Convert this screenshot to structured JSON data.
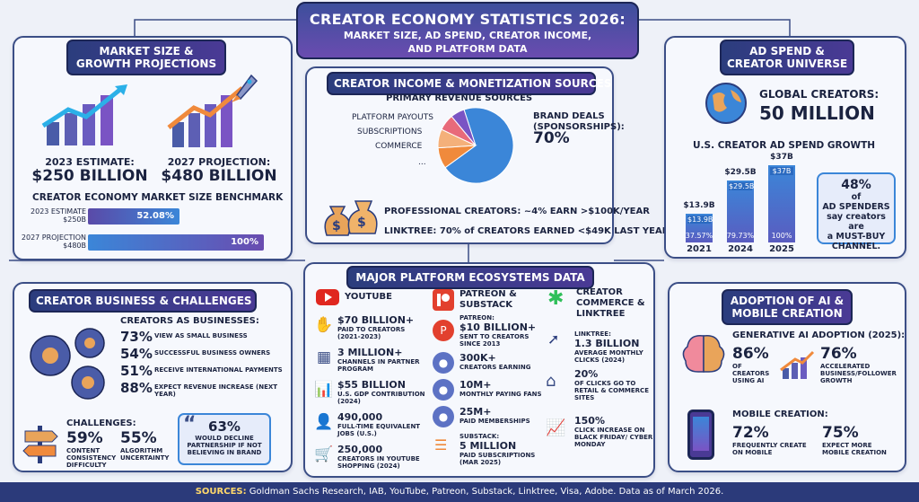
{
  "header": {
    "title": "CREATOR ECONOMY STATISTICS 2026:",
    "subtitle_1": "MARKET SIZE, AD SPEND, CREATOR INCOME,",
    "subtitle_2": "AND PLATFORM DATA"
  },
  "market": {
    "title_1": "MARKET SIZE &",
    "title_2": "GROWTH PROJECTIONS",
    "est_label": "2023 ESTIMATE:",
    "est_value": "$250 BILLION",
    "proj_label": "2027 PROJECTION:",
    "proj_value": "$480 BILLION",
    "bench_title": "CREATOR ECONOMY MARKET SIZE BENCHMARK",
    "bars": [
      {
        "label_1": "2023 ESTIMATE",
        "label_2": "$250B",
        "display": "52.08%",
        "value": 52.08
      },
      {
        "label_1": "2027 PROJECTION",
        "label_2": "$480B",
        "display": "100%",
        "value": 100
      }
    ]
  },
  "income": {
    "title": "CREATOR INCOME & MONETIZATION SOURCES",
    "chart_title": "PRIMARY REVENUE SOURCES",
    "labels": [
      "PLATFORM PAYOUTS",
      "SUBSCRIPTIONS",
      "COMMERCE",
      "..."
    ],
    "brand_1": "BRAND DEALS",
    "brand_2": "(SPONSORSHIPS):",
    "brand_value": "70%",
    "pro": "PROFESSIONAL CREATORS: ~4% EARN >$100K/YEAR",
    "linktree": "LINKTREE: 70% of CREATORS EARNED <$49K LAST YEAR"
  },
  "chart_data": {
    "type": "pie",
    "categories": [
      "BRAND DEALS (SPONSORSHIPS)",
      "PLATFORM PAYOUTS",
      "SUBSCRIPTIONS",
      "COMMERCE",
      "..."
    ],
    "values": [
      70,
      9,
      8,
      7,
      6
    ],
    "title": "PRIMARY REVENUE SOURCES"
  },
  "adspend": {
    "title_1": "AD SPEND &",
    "title_2": "CREATOR UNIVERSE",
    "global_1": "GLOBAL CREATORS:",
    "global_2": "50 MILLION",
    "growth_title": "U.S. CREATOR AD SPEND GROWTH",
    "bars": [
      {
        "year": "2021",
        "top": "$13.9B",
        "inner": "$13.9B",
        "pct": "37.57%",
        "value": 13.9
      },
      {
        "year": "2024",
        "top": "$29.5B",
        "inner": "$29.5B",
        "pct": "79.73%",
        "value": 29.5
      },
      {
        "year": "2025",
        "top": "$37B",
        "inner": "$37B",
        "pct": "100%",
        "value": 37
      }
    ],
    "note_pct": "48%",
    "note_1": "of",
    "note_2": "AD SPENDERS",
    "note_3": "say creators are",
    "note_4": "a MUST-BUY",
    "note_5": "CHANNEL."
  },
  "business": {
    "title": "CREATOR BUSINESS & CHALLENGES",
    "sub": "CREATORS AS BUSINESSES:",
    "stats": [
      {
        "pct": "73%",
        "text": "VIEW AS SMALL BUSINESS"
      },
      {
        "pct": "54%",
        "text": "SUCCESSFUL BUSINESS OWNERS"
      },
      {
        "pct": "51%",
        "text": "RECEIVE INTERNATIONAL PAYMENTS"
      },
      {
        "pct": "88%",
        "text": "EXPECT REVENUE INCREASE (NEXT YEAR)"
      }
    ],
    "challenges": "CHALLENGES:",
    "c1_pct": "59%",
    "c1_text": "CONTENT CONSISTENCY DIFFICULTY",
    "c2_pct": "55%",
    "c2_text": "ALGORITHM UNCERTAINTY",
    "q_pct": "63%",
    "q_text": "WOULD DECLINE PARTNERSHIP IF NOT BELIEVING IN BRAND"
  },
  "platforms": {
    "title": "MAJOR PLATFORM ECOSYSTEMS DATA",
    "yt": {
      "name": "YOUTUBE",
      "items": [
        {
          "v": "$70 BILLION+",
          "t": "PAID TO CREATORS (2021-2023)"
        },
        {
          "v": "3 MILLION+",
          "t": "CHANNELS IN PARTNER PROGRAM"
        },
        {
          "v": "$55 BILLION",
          "t": "U.S. GDP CONTRIBUTION (2024)"
        },
        {
          "v": "490,000",
          "t": "FULL-TIME EQUIVALENT JOBS (U.S.)"
        },
        {
          "v": "250,000",
          "t": "CREATORS IN YOUTUBE SHOPPING (2024)"
        }
      ]
    },
    "pa": {
      "name_1": "PATREON &",
      "name_2": "SUBSTACK",
      "patreon": "PATREON:",
      "p_v": "$10 BILLION+",
      "p_t": "SENT TO CREATORS SINCE 2013",
      "items": [
        {
          "v": "300K+",
          "t": "CREATORS EARNING"
        },
        {
          "v": "10M+",
          "t": "MONTHLY PAYING FANS"
        },
        {
          "v": "25M+",
          "t": "PAID MEMBERSHIPS"
        }
      ],
      "substack": "SUBSTACK:",
      "s_v": "5 MILLION",
      "s_t": "PAID SUBSCRIPTIONS (MAR 2025)"
    },
    "lt": {
      "name_1": "CREATOR",
      "name_2": "COMMERCE &",
      "name_3": "LINKTREE",
      "lt": "LINKTREE:",
      "lt_v": "1.3 BILLION",
      "lt_t": "AVERAGE MONTHLY CLICKS (2024)",
      "items": [
        {
          "v": "20%",
          "t": "OF CLICKS GO TO RETAIL & COMMERCE SITES"
        },
        {
          "v": "150%",
          "t": "CLICK INCREASE ON BLACK FRIDAY/ CYBER MONDAY"
        }
      ]
    }
  },
  "ai": {
    "title_1": "ADOPTION OF AI &",
    "title_2": "MOBILE CREATION",
    "gen": "GENERATIVE AI ADOPTION (2025):",
    "a1": "86%",
    "a1t": "OF CREATORS USING AI",
    "a2": "76%",
    "a2t": "ACCELERATED BUSINESS/FOLLOWER GROWTH",
    "mobile": "MOBILE CREATION:",
    "m1": "72%",
    "m1t": "FREQUENTLY CREATE ON MOBILE",
    "m2": "75%",
    "m2t": "EXPECT MORE MOBILE CREATION"
  },
  "footer": {
    "label": "SOURCES:",
    "text": "Goldman Sachs Research, IAB, YouTube, Patreon, Substack, Linktree, Visa, Adobe. Data as of March 2026."
  },
  "colors": {
    "navy": "#2b3d7d",
    "purple": "#6a4cb0",
    "blue": "#3b86d8",
    "orange": "#f08a3c"
  }
}
